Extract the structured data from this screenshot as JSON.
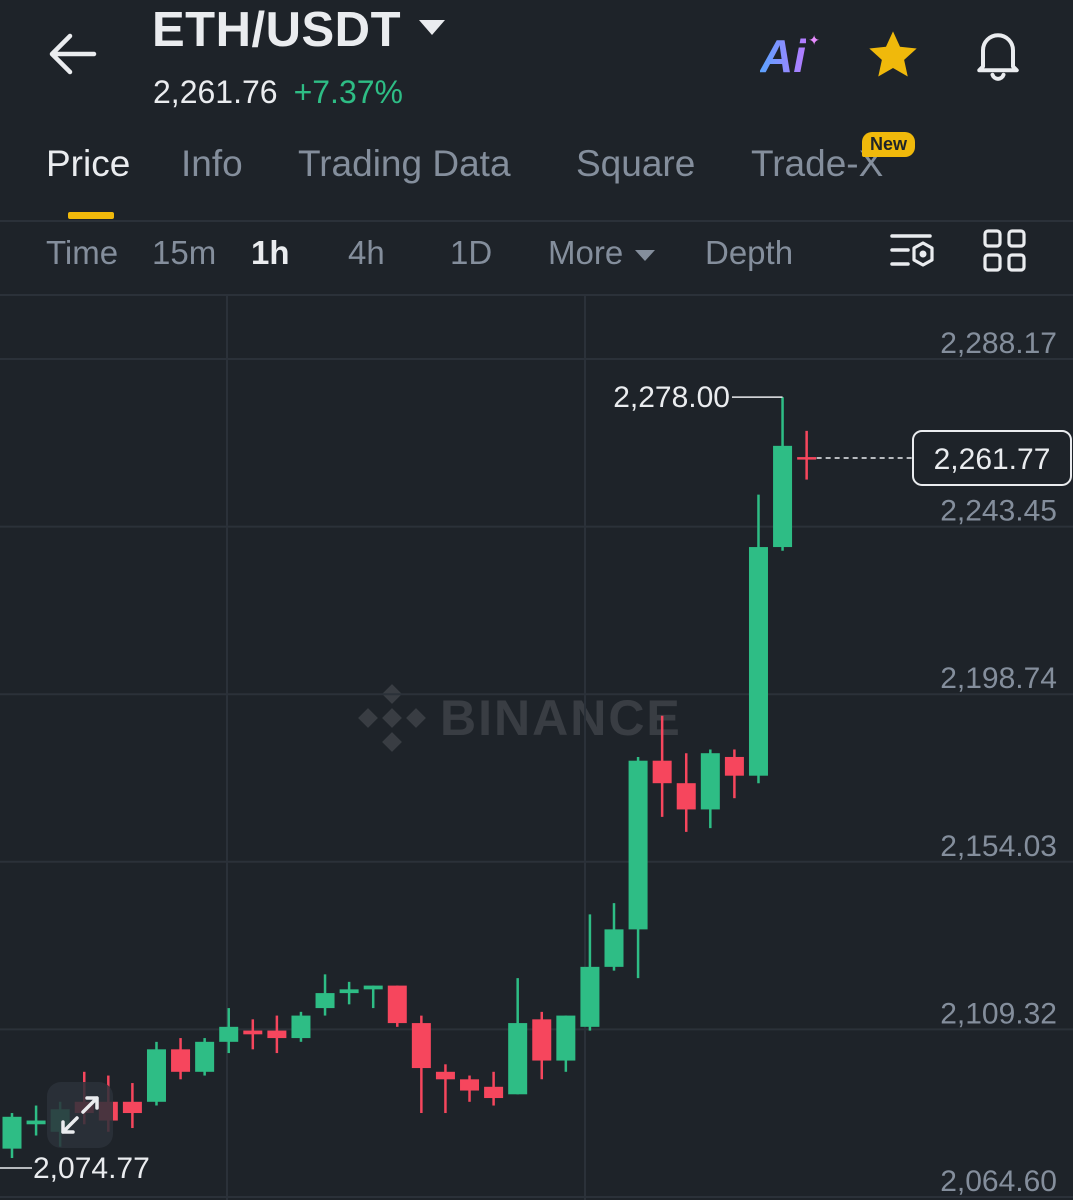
{
  "header": {
    "pair": "ETH/USDT",
    "last_price": "2,261.76",
    "change_pct": "+7.37%",
    "ai_label": "Ai"
  },
  "tabs": [
    {
      "label": "Price",
      "active": true
    },
    {
      "label": "Info"
    },
    {
      "label": "Trading Data"
    },
    {
      "label": "Square"
    },
    {
      "label": "Trade-X",
      "badge": "New"
    }
  ],
  "intervals": [
    {
      "label": "Time"
    },
    {
      "label": "15m"
    },
    {
      "label": "1h",
      "active": true
    },
    {
      "label": "4h"
    },
    {
      "label": "1D"
    },
    {
      "label": "More"
    },
    {
      "label": "Depth"
    }
  ],
  "watermark": "BINANCE",
  "colors": {
    "up": "#2ebd85",
    "down": "#f6465d",
    "accent": "#f0b90b",
    "background": "#1e2329"
  },
  "chart_data": {
    "type": "candlestick",
    "interval": "1h",
    "y_ticks": [
      "2,288.17",
      "2,243.45",
      "2,198.74",
      "2,154.03",
      "2,109.32",
      "2,064.60"
    ],
    "y_tick_values": [
      2288.17,
      2243.45,
      2198.74,
      2154.03,
      2109.32,
      2064.6
    ],
    "current_price_label": "2,261.77",
    "high_label": "2,278.00",
    "low_label": "2,074.77",
    "candles": [
      {
        "o": 2077.5,
        "h": 2087.0,
        "l": 2075.0,
        "c": 2086.0
      },
      {
        "o": 2084.0,
        "h": 2089.0,
        "l": 2081.0,
        "c": 2085.0
      },
      {
        "o": 2082.0,
        "h": 2090.0,
        "l": 2078.0,
        "c": 2088.0
      },
      {
        "o": 2090.0,
        "h": 2098.0,
        "l": 2084.0,
        "c": 2087.0
      },
      {
        "o": 2090.0,
        "h": 2097.0,
        "l": 2082.0,
        "c": 2085.0
      },
      {
        "o": 2090.0,
        "h": 2095.0,
        "l": 2083.0,
        "c": 2087.0
      },
      {
        "o": 2090.0,
        "h": 2106.0,
        "l": 2089.0,
        "c": 2104.0
      },
      {
        "o": 2104.0,
        "h": 2107.0,
        "l": 2096.0,
        "c": 2098.0
      },
      {
        "o": 2098.0,
        "h": 2107.0,
        "l": 2097.0,
        "c": 2106.0
      },
      {
        "o": 2106.0,
        "h": 2115.0,
        "l": 2103.0,
        "c": 2110.0
      },
      {
        "o": 2109.0,
        "h": 2112.0,
        "l": 2104.0,
        "c": 2108.0
      },
      {
        "o": 2109.0,
        "h": 2113.0,
        "l": 2103.0,
        "c": 2107.0
      },
      {
        "o": 2107.0,
        "h": 2114.0,
        "l": 2106.0,
        "c": 2113.0
      },
      {
        "o": 2115.0,
        "h": 2124.0,
        "l": 2113.0,
        "c": 2119.0
      },
      {
        "o": 2119.0,
        "h": 2122.0,
        "l": 2116.0,
        "c": 2120.0
      },
      {
        "o": 2120.0,
        "h": 2121.0,
        "l": 2115.0,
        "c": 2121.0
      },
      {
        "o": 2121.0,
        "h": 2121.0,
        "l": 2110.0,
        "c": 2111.0
      },
      {
        "o": 2111.0,
        "h": 2113.0,
        "l": 2087.0,
        "c": 2099.0
      },
      {
        "o": 2098.0,
        "h": 2100.0,
        "l": 2087.0,
        "c": 2096.0
      },
      {
        "o": 2096.0,
        "h": 2097.0,
        "l": 2090.0,
        "c": 2093.0
      },
      {
        "o": 2094.0,
        "h": 2098.0,
        "l": 2089.0,
        "c": 2091.0
      },
      {
        "o": 2092.0,
        "h": 2123.0,
        "l": 2092.0,
        "c": 2111.0
      },
      {
        "o": 2112.0,
        "h": 2114.0,
        "l": 2096.0,
        "c": 2101.0
      },
      {
        "o": 2101.0,
        "h": 2113.0,
        "l": 2098.0,
        "c": 2113.0
      },
      {
        "o": 2110.0,
        "h": 2140.0,
        "l": 2109.0,
        "c": 2126.0
      },
      {
        "o": 2126.0,
        "h": 2143.0,
        "l": 2125.0,
        "c": 2136.0
      },
      {
        "o": 2136.0,
        "h": 2182.0,
        "l": 2123.0,
        "c": 2181.0
      },
      {
        "o": 2181.0,
        "h": 2193.0,
        "l": 2166.0,
        "c": 2175.0
      },
      {
        "o": 2175.0,
        "h": 2183.0,
        "l": 2162.0,
        "c": 2168.0
      },
      {
        "o": 2168.0,
        "h": 2184.0,
        "l": 2163.0,
        "c": 2183.0
      },
      {
        "o": 2182.0,
        "h": 2184.0,
        "l": 2171.0,
        "c": 2177.0
      },
      {
        "o": 2177.0,
        "h": 2252.0,
        "l": 2175.0,
        "c": 2238.0
      },
      {
        "o": 2238.0,
        "h": 2278.0,
        "l": 2237.0,
        "c": 2265.0
      },
      {
        "o": 2262.0,
        "h": 2269.0,
        "l": 2256.0,
        "c": 2261.77
      }
    ]
  }
}
